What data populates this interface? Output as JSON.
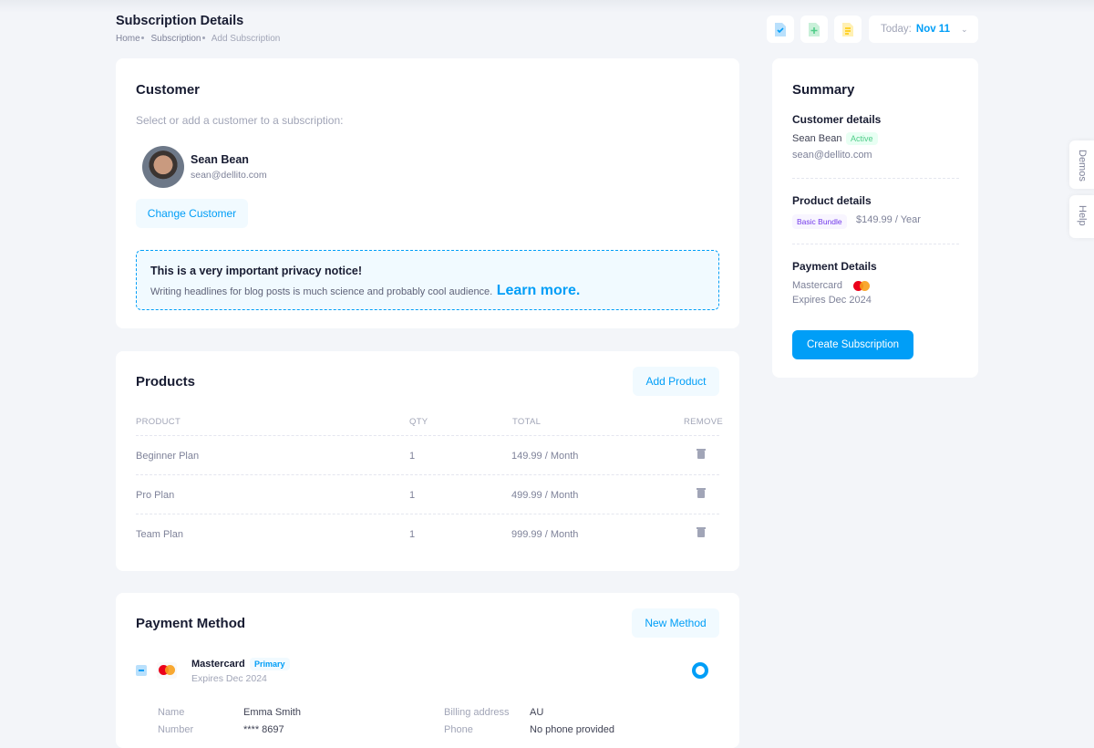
{
  "header": {
    "title": "Subscription Details",
    "breadcrumb": [
      "Home",
      "Subscription",
      "Add Subscription"
    ],
    "toolbar_icons": [
      "file-check-icon",
      "file-add-icon",
      "file-text-icon"
    ],
    "date_label": "Today:",
    "date_value": "Nov 11"
  },
  "customer": {
    "title": "Customer",
    "subtitle": "Select or add a customer to a subscription:",
    "name": "Sean Bean",
    "email": "sean@dellito.com",
    "change_label": "Change Customer",
    "notice_title": "This is a very important privacy notice!",
    "notice_text": "Writing headlines for blog posts is much science and probably cool audience.",
    "notice_link": "Learn more."
  },
  "products": {
    "title": "Products",
    "add_label": "Add Product",
    "columns": [
      "PRODUCT",
      "QTY",
      "TOTAL",
      "REMOVE"
    ],
    "rows": [
      {
        "name": "Beginner Plan",
        "qty": "1",
        "total": "149.99 / Month"
      },
      {
        "name": "Pro Plan",
        "qty": "1",
        "total": "499.99 / Month"
      },
      {
        "name": "Team Plan",
        "qty": "1",
        "total": "999.99 / Month"
      }
    ]
  },
  "payment": {
    "title": "Payment Method",
    "new_label": "New Method",
    "card": "Mastercard",
    "badge": "Primary",
    "expires": "Expires Dec 2024",
    "details": [
      {
        "label": "Name",
        "value": "Emma Smith"
      },
      {
        "label": "Number",
        "value": "**** 8697"
      },
      {
        "label": "Billing address",
        "value": "AU"
      },
      {
        "label": "Phone",
        "value": "No phone provided"
      }
    ]
  },
  "summary": {
    "title": "Summary",
    "customer_heading": "Customer details",
    "customer_name": "Sean Bean",
    "status": "Active",
    "email": "sean@dellito.com",
    "product_heading": "Product details",
    "product_badge": "Basic Bundle",
    "price": "$149.99 / Year",
    "payment_heading": "Payment Details",
    "card": "Mastercard",
    "expires": "Expires Dec 2024",
    "create_label": "Create Subscription"
  },
  "side_tabs": [
    "Demos",
    "Help"
  ],
  "colors": {
    "primary": "#009ef7",
    "success": "#50cd89",
    "purple": "#7239ea",
    "background": "#f3f5f9"
  }
}
